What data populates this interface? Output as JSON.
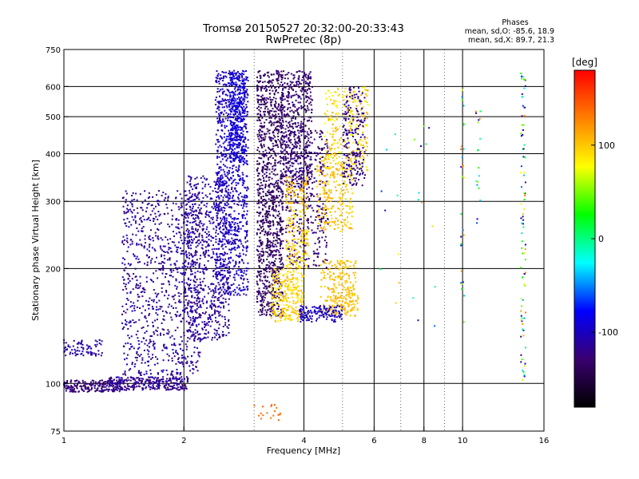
{
  "chart_data": {
    "type": "scatter",
    "title": "Tromsø 20150527 20:32:00-20:33:43",
    "subtitle": "RwPretec (8p)",
    "xlabel": "Frequency [MHz]",
    "ylabel": "Stationary phase Virtual Height [km]",
    "x_scale": "log",
    "y_scale": "log",
    "xlim": [
      1,
      16
    ],
    "ylim": [
      75,
      750
    ],
    "x_ticks": [
      1,
      2,
      4,
      6,
      8,
      10,
      16
    ],
    "x_tick_labels": [
      "1",
      "2",
      "4",
      "6",
      "8",
      "10",
      "16"
    ],
    "x_grid_lines": [
      2,
      4,
      6,
      8,
      10
    ],
    "x_minor_grid_lines": [
      3,
      5,
      7,
      9
    ],
    "y_ticks": [
      75,
      100,
      200,
      300,
      400,
      500,
      600,
      750
    ],
    "y_tick_labels": [
      "75",
      "100",
      "200",
      "300",
      "400",
      "500",
      "600",
      "750"
    ],
    "y_grid_lines": [
      100,
      200,
      300,
      400,
      500,
      600
    ],
    "grid": true,
    "phase_box": {
      "title": "Phases",
      "lines": [
        "mean, sd,O: -85.6, 18.9",
        "mean, sd,X:  89.7, 21.3"
      ]
    },
    "colorbar": {
      "label": "[deg]",
      "range": [
        -180,
        180
      ],
      "ticks": [
        100,
        0,
        -100
      ],
      "tick_labels": [
        "100",
        "0",
        "-100"
      ],
      "colormap": [
        "#000000",
        "#3a0070",
        "#0000ff",
        "#00ffff",
        "#00ff00",
        "#ffff00",
        "#ff8000",
        "#ff0000"
      ]
    },
    "clusters": [
      {
        "freq": [
          1.0,
          1.4
        ],
        "height": [
          95,
          102
        ],
        "phase": [
          -140,
          -110
        ],
        "count": 220
      },
      {
        "freq": [
          1.3,
          2.05
        ],
        "height": [
          96,
          104
        ],
        "phase": [
          -135,
          -100
        ],
        "count": 300
      },
      {
        "freq": [
          1.0,
          1.25
        ],
        "height": [
          118,
          130
        ],
        "phase": [
          -120,
          -95
        ],
        "count": 80
      },
      {
        "freq": [
          1.4,
          2.2
        ],
        "height": [
          105,
          320
        ],
        "phase": [
          -130,
          -95
        ],
        "count": 900
      },
      {
        "freq": [
          2.0,
          2.6
        ],
        "height": [
          130,
          350
        ],
        "phase": [
          -125,
          -100
        ],
        "count": 700
      },
      {
        "freq": [
          2.4,
          2.9
        ],
        "height": [
          170,
          660
        ],
        "phase": [
          -115,
          -85
        ],
        "count": 900
      },
      {
        "freq": [
          2.6,
          2.85
        ],
        "height": [
          380,
          660
        ],
        "phase": [
          -100,
          -80
        ],
        "count": 350
      },
      {
        "freq": [
          3.05,
          3.55
        ],
        "height": [
          150,
          660
        ],
        "phase": [
          -150,
          -120
        ],
        "count": 1100
      },
      {
        "freq": [
          3.5,
          4.2
        ],
        "height": [
          330,
          660
        ],
        "phase": [
          -145,
          -115
        ],
        "count": 500
      },
      {
        "freq": [
          3.6,
          4.6
        ],
        "height": [
          200,
          460
        ],
        "phase": [
          -140,
          -110
        ],
        "count": 400
      },
      {
        "freq": [
          3.3,
          4.0
        ],
        "height": [
          145,
          200
        ],
        "phase": [
          80,
          110
        ],
        "count": 260
      },
      {
        "freq": [
          3.6,
          4.1
        ],
        "height": [
          200,
          350
        ],
        "phase": [
          80,
          120
        ],
        "count": 220
      },
      {
        "freq": [
          4.3,
          5.3
        ],
        "height": [
          250,
          400
        ],
        "phase": [
          85,
          115
        ],
        "count": 260
      },
      {
        "freq": [
          4.5,
          5.8
        ],
        "height": [
          360,
          600
        ],
        "phase": [
          70,
          120
        ],
        "count": 260
      },
      {
        "freq": [
          4.4,
          5.4
        ],
        "height": [
          150,
          210
        ],
        "phase": [
          90,
          115
        ],
        "count": 220
      },
      {
        "freq": [
          4.6,
          5.5
        ],
        "height": [
          150,
          175
        ],
        "phase": [
          95,
          110
        ],
        "count": 60
      },
      {
        "freq": [
          3.9,
          5.0
        ],
        "height": [
          145,
          160
        ],
        "phase": [
          -110,
          -90
        ],
        "count": 140
      },
      {
        "freq": [
          3.0,
          3.5
        ],
        "height": [
          80,
          90
        ],
        "phase": [
          130,
          150
        ],
        "count": 18
      },
      {
        "freq": [
          5.0,
          5.7
        ],
        "height": [
          330,
          600
        ],
        "phase": [
          -140,
          -100
        ],
        "count": 200
      },
      {
        "freq": [
          14.0,
          14.4
        ],
        "height": [
          100,
          660
        ],
        "phase": [
          -140,
          130
        ],
        "count": 90
      },
      {
        "freq": [
          9.9,
          10.1
        ],
        "height": [
          125,
          620
        ],
        "phase": [
          -130,
          140
        ],
        "count": 30
      },
      {
        "freq": [
          10.8,
          11.1
        ],
        "height": [
          250,
          640
        ],
        "phase": [
          -130,
          140
        ],
        "count": 18
      },
      {
        "freq": [
          6.2,
          8.6
        ],
        "height": [
          110,
          480
        ],
        "phase": [
          -130,
          130
        ],
        "count": 22
      }
    ]
  }
}
